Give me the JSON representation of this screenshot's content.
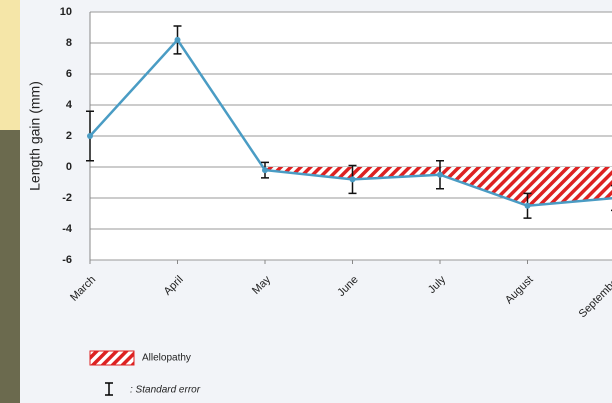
{
  "chart_data": {
    "type": "line",
    "y_label": "Length gain (mm)",
    "categories": [
      "March",
      "April",
      "May",
      "June",
      "July",
      "August",
      "September"
    ],
    "series": [
      {
        "name": "Length gain",
        "color": "#4a9cc4",
        "values": [
          2,
          8.2,
          -0.2,
          -0.8,
          -0.5,
          -2.5,
          -2.0
        ],
        "errors": [
          1.6,
          0.9,
          0.5,
          0.9,
          0.9,
          0.8,
          0.8
        ]
      }
    ],
    "shaded": {
      "name": "Allelopathy",
      "from": "May",
      "color": "#d22"
    },
    "error_label": ": Standard error",
    "ylim": [
      -6,
      10
    ],
    "yticks": [
      -6,
      -4,
      -2,
      0,
      2,
      4,
      6,
      8,
      10
    ],
    "grid": true
  }
}
